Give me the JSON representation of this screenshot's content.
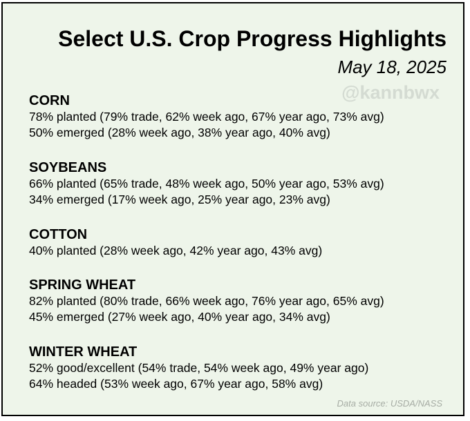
{
  "header": {
    "title": "Select U.S. Crop Progress Highlights",
    "date": "May 18, 2025",
    "handle": "@kannbwx"
  },
  "sections": [
    {
      "name": "CORN",
      "lines": [
        "78% planted (79% trade, 62% week ago, 67% year ago, 73% avg)",
        "50% emerged (28% week ago, 38% year ago, 40% avg)"
      ]
    },
    {
      "name": "SOYBEANS",
      "lines": [
        "66% planted (65% trade, 48% week ago, 50% year ago, 53% avg)",
        "34% emerged (17% week ago, 25% year ago, 23% avg)"
      ]
    },
    {
      "name": "COTTON",
      "lines": [
        "40% planted (28% week ago, 42% year ago, 43% avg)"
      ]
    },
    {
      "name": "SPRING WHEAT",
      "lines": [
        "82% planted (80% trade, 66% week ago, 76% year ago, 65% avg)",
        "45% emerged (27% week ago, 40% year ago, 34% avg)"
      ]
    },
    {
      "name": "WINTER WHEAT",
      "lines": [
        "52% good/excellent (54% trade, 54% week ago, 49% year ago)",
        "64% headed (53% week ago, 67% year ago, 58% avg)"
      ]
    }
  ],
  "footer": {
    "source": "Data source: USDA/NASS"
  },
  "colors": {
    "background": "#eef5ea",
    "border": "#000000",
    "watermark": "#d4dbd2",
    "source_text": "#a6aca4"
  }
}
